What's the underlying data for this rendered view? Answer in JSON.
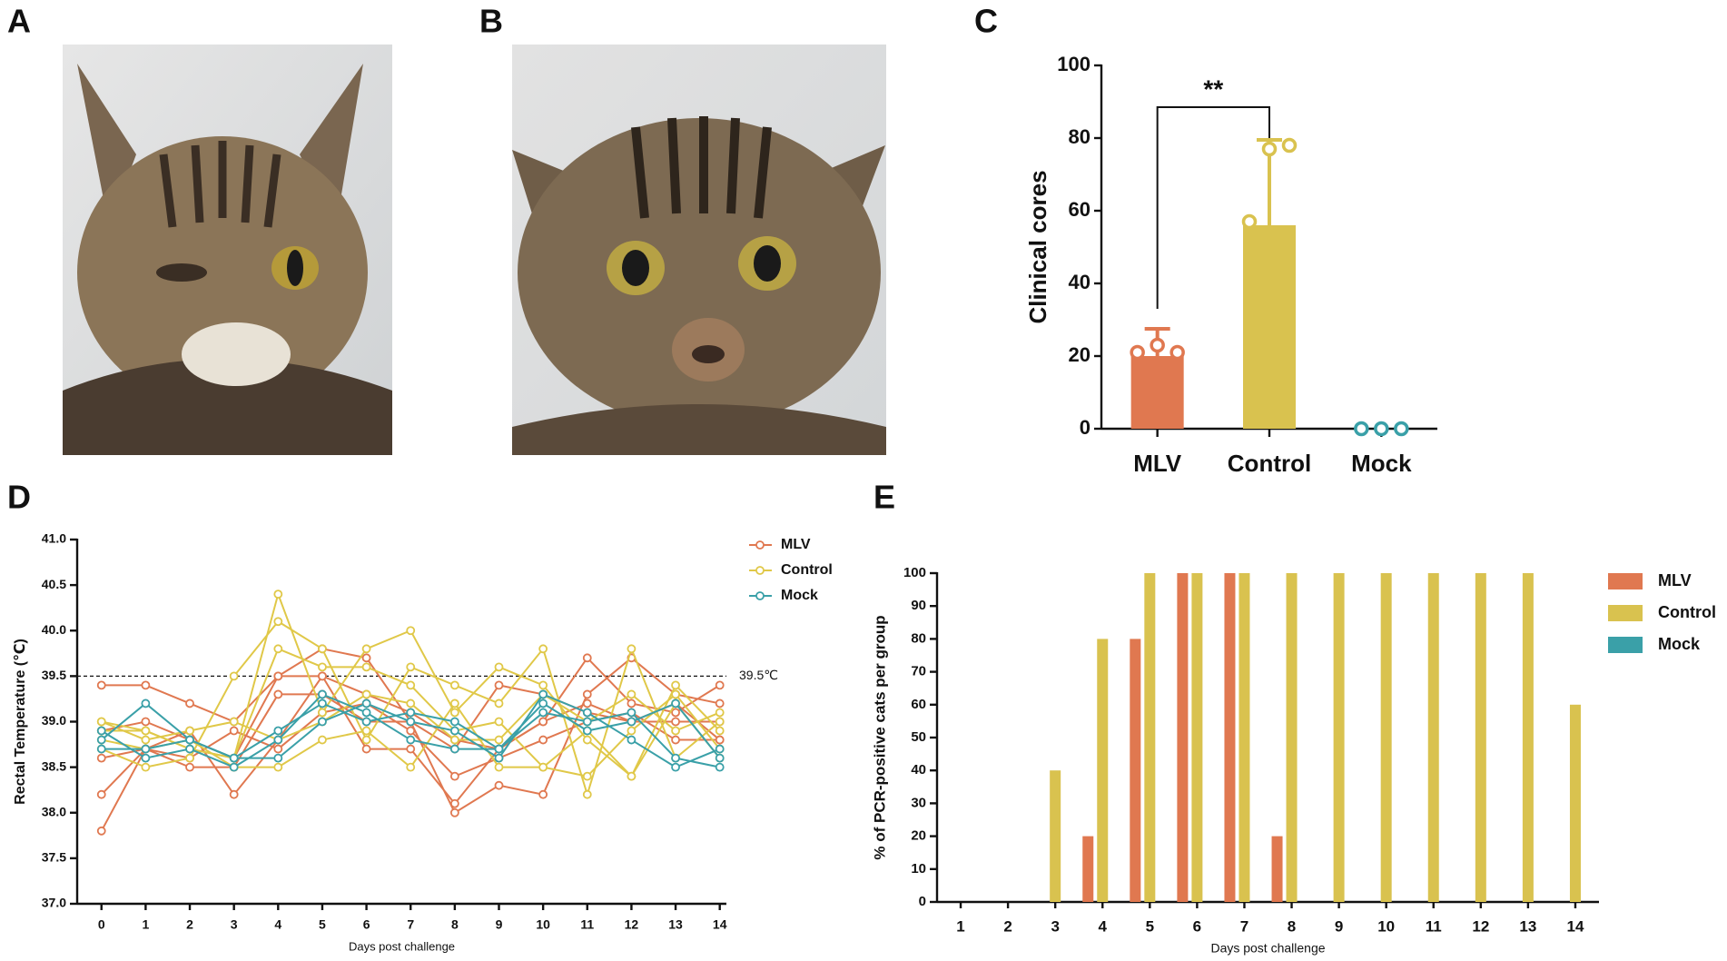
{
  "panel_labels": [
    "A",
    "B",
    "C",
    "D",
    "E"
  ],
  "chart_data": [
    {
      "type": "bar",
      "categories": [
        "MLV",
        "Control",
        "Mock"
      ],
      "values": [
        20,
        56,
        0
      ],
      "errors": [
        7.5,
        23.5,
        0
      ],
      "points": [
        [
          21,
          23,
          21
        ],
        [
          57,
          77,
          78
        ],
        [
          0,
          0,
          0
        ]
      ],
      "colors": [
        "#e07850",
        "#d9c24f",
        "#3aa0a8"
      ],
      "ylabel": "Clinical cores",
      "annotation": "**",
      "ylim": [
        0,
        100
      ],
      "yticks": [
        0,
        20,
        40,
        60,
        80,
        100
      ]
    },
    {
      "type": "line",
      "ylabel": "Rectal Temperature (℃)",
      "xlabel": "Days post challenge",
      "x": [
        0,
        1,
        2,
        3,
        4,
        5,
        6,
        7,
        8,
        9,
        10,
        11,
        12,
        13,
        14
      ],
      "xlim": [
        -0.55,
        14.15
      ],
      "xticks": [
        0,
        1,
        2,
        3,
        4,
        5,
        6,
        7,
        8,
        9,
        10,
        11,
        12,
        13,
        14
      ],
      "ylim": [
        37,
        41
      ],
      "yticks": [
        {
          "value": 37,
          "label": "37.0"
        },
        37.5,
        {
          "value": 38,
          "label": "38.0"
        },
        38.5,
        {
          "value": 39,
          "label": "39.0"
        },
        39.5,
        {
          "value": 40,
          "label": "40.0"
        },
        40.5,
        {
          "value": 41,
          "label": "41.0"
        }
      ],
      "threshold": 39.5,
      "threshold_label": "39.5℃",
      "series": [
        {
          "name": "MLV",
          "color": "#e07850",
          "values": [
            [
              39.4,
              39.4,
              39.2,
              39.0,
              39.5,
              39.5,
              39.3,
              39.1,
              38.8,
              38.7,
              39.0,
              39.7,
              39.2,
              39.1,
              39.4
            ],
            [
              38.9,
              39.0,
              38.8,
              38.6,
              39.5,
              39.8,
              39.7,
              39.0,
              38.0,
              38.3,
              38.2,
              39.3,
              39.7,
              39.3,
              39.2
            ],
            [
              38.6,
              38.7,
              38.9,
              38.2,
              38.8,
              39.5,
              38.7,
              38.7,
              38.1,
              38.7,
              39.0,
              39.2,
              39.0,
              39.2,
              38.8
            ],
            [
              38.2,
              38.7,
              38.6,
              38.9,
              38.7,
              39.1,
              39.2,
              38.9,
              38.4,
              38.6,
              38.8,
              39.0,
              39.1,
              38.8,
              38.8
            ],
            [
              37.8,
              38.7,
              38.5,
              38.5,
              39.3,
              39.3,
              39.0,
              39.0,
              38.7,
              39.4,
              39.3,
              39.1,
              39.0,
              39.0,
              39.0
            ]
          ]
        },
        {
          "name": "Control",
          "color": "#e0c848",
          "values": [
            [
              39.0,
              38.9,
              38.7,
              38.6,
              40.4,
              39.1,
              39.8,
              40.0,
              39.1,
              39.6,
              39.4,
              38.8,
              38.4,
              39.4,
              38.9
            ],
            [
              38.7,
              38.5,
              38.6,
              39.5,
              40.1,
              39.8,
              38.8,
              39.6,
              39.4,
              39.2,
              39.8,
              38.2,
              39.8,
              38.6,
              39.0
            ],
            [
              38.9,
              38.9,
              38.7,
              38.6,
              39.8,
              39.6,
              39.6,
              39.4,
              38.9,
              39.0,
              38.5,
              38.4,
              38.9,
              39.3,
              38.7
            ],
            [
              38.8,
              38.7,
              38.8,
              38.5,
              38.5,
              38.8,
              38.9,
              38.5,
              39.2,
              38.5,
              38.5,
              38.9,
              38.4,
              39.2,
              38.6
            ],
            [
              39.0,
              38.8,
              38.9,
              39.0,
              38.8,
              39.0,
              39.3,
              39.2,
              38.8,
              38.8,
              39.3,
              39.0,
              39.3,
              38.9,
              39.1
            ]
          ]
        },
        {
          "name": "Mock",
          "color": "#3aa0a8",
          "values": [
            [
              38.8,
              39.2,
              38.8,
              38.6,
              38.6,
              39.0,
              39.2,
              39.0,
              38.9,
              38.6,
              39.3,
              39.1,
              38.8,
              38.5,
              38.7
            ],
            [
              38.9,
              38.6,
              38.7,
              38.5,
              38.8,
              39.3,
              39.1,
              38.8,
              38.7,
              38.7,
              39.1,
              39.0,
              39.1,
              38.6,
              38.5
            ],
            [
              38.7,
              38.7,
              38.8,
              38.6,
              38.9,
              39.2,
              39.0,
              39.1,
              39.0,
              38.7,
              39.2,
              38.9,
              39.0,
              39.2,
              38.6
            ]
          ]
        }
      ]
    },
    {
      "type": "bar",
      "ylabel": "% of PCR-positive cats per group",
      "xlabel": "Days post challenge",
      "categories": [
        "1",
        "2",
        "3",
        "4",
        "5",
        "6",
        "7",
        "8",
        "9",
        "10",
        "11",
        "12",
        "13",
        "14"
      ],
      "ylim": [
        0,
        100
      ],
      "yticks": [
        0,
        10,
        20,
        30,
        40,
        50,
        60,
        70,
        80,
        90,
        100
      ],
      "series": [
        {
          "name": "MLV",
          "color": "#e07850",
          "values": [
            0,
            0,
            0,
            20,
            80,
            100,
            100,
            20,
            0,
            0,
            0,
            0,
            0,
            0
          ]
        },
        {
          "name": "Control",
          "color": "#d9c24f",
          "values": [
            0,
            0,
            40,
            80,
            100,
            100,
            100,
            100,
            100,
            100,
            100,
            100,
            100,
            60
          ]
        },
        {
          "name": "Mock",
          "color": "#3aa0a8",
          "values": [
            0,
            0,
            0,
            0,
            0,
            0,
            0,
            0,
            0,
            0,
            0,
            0,
            0,
            0
          ]
        }
      ]
    }
  ]
}
